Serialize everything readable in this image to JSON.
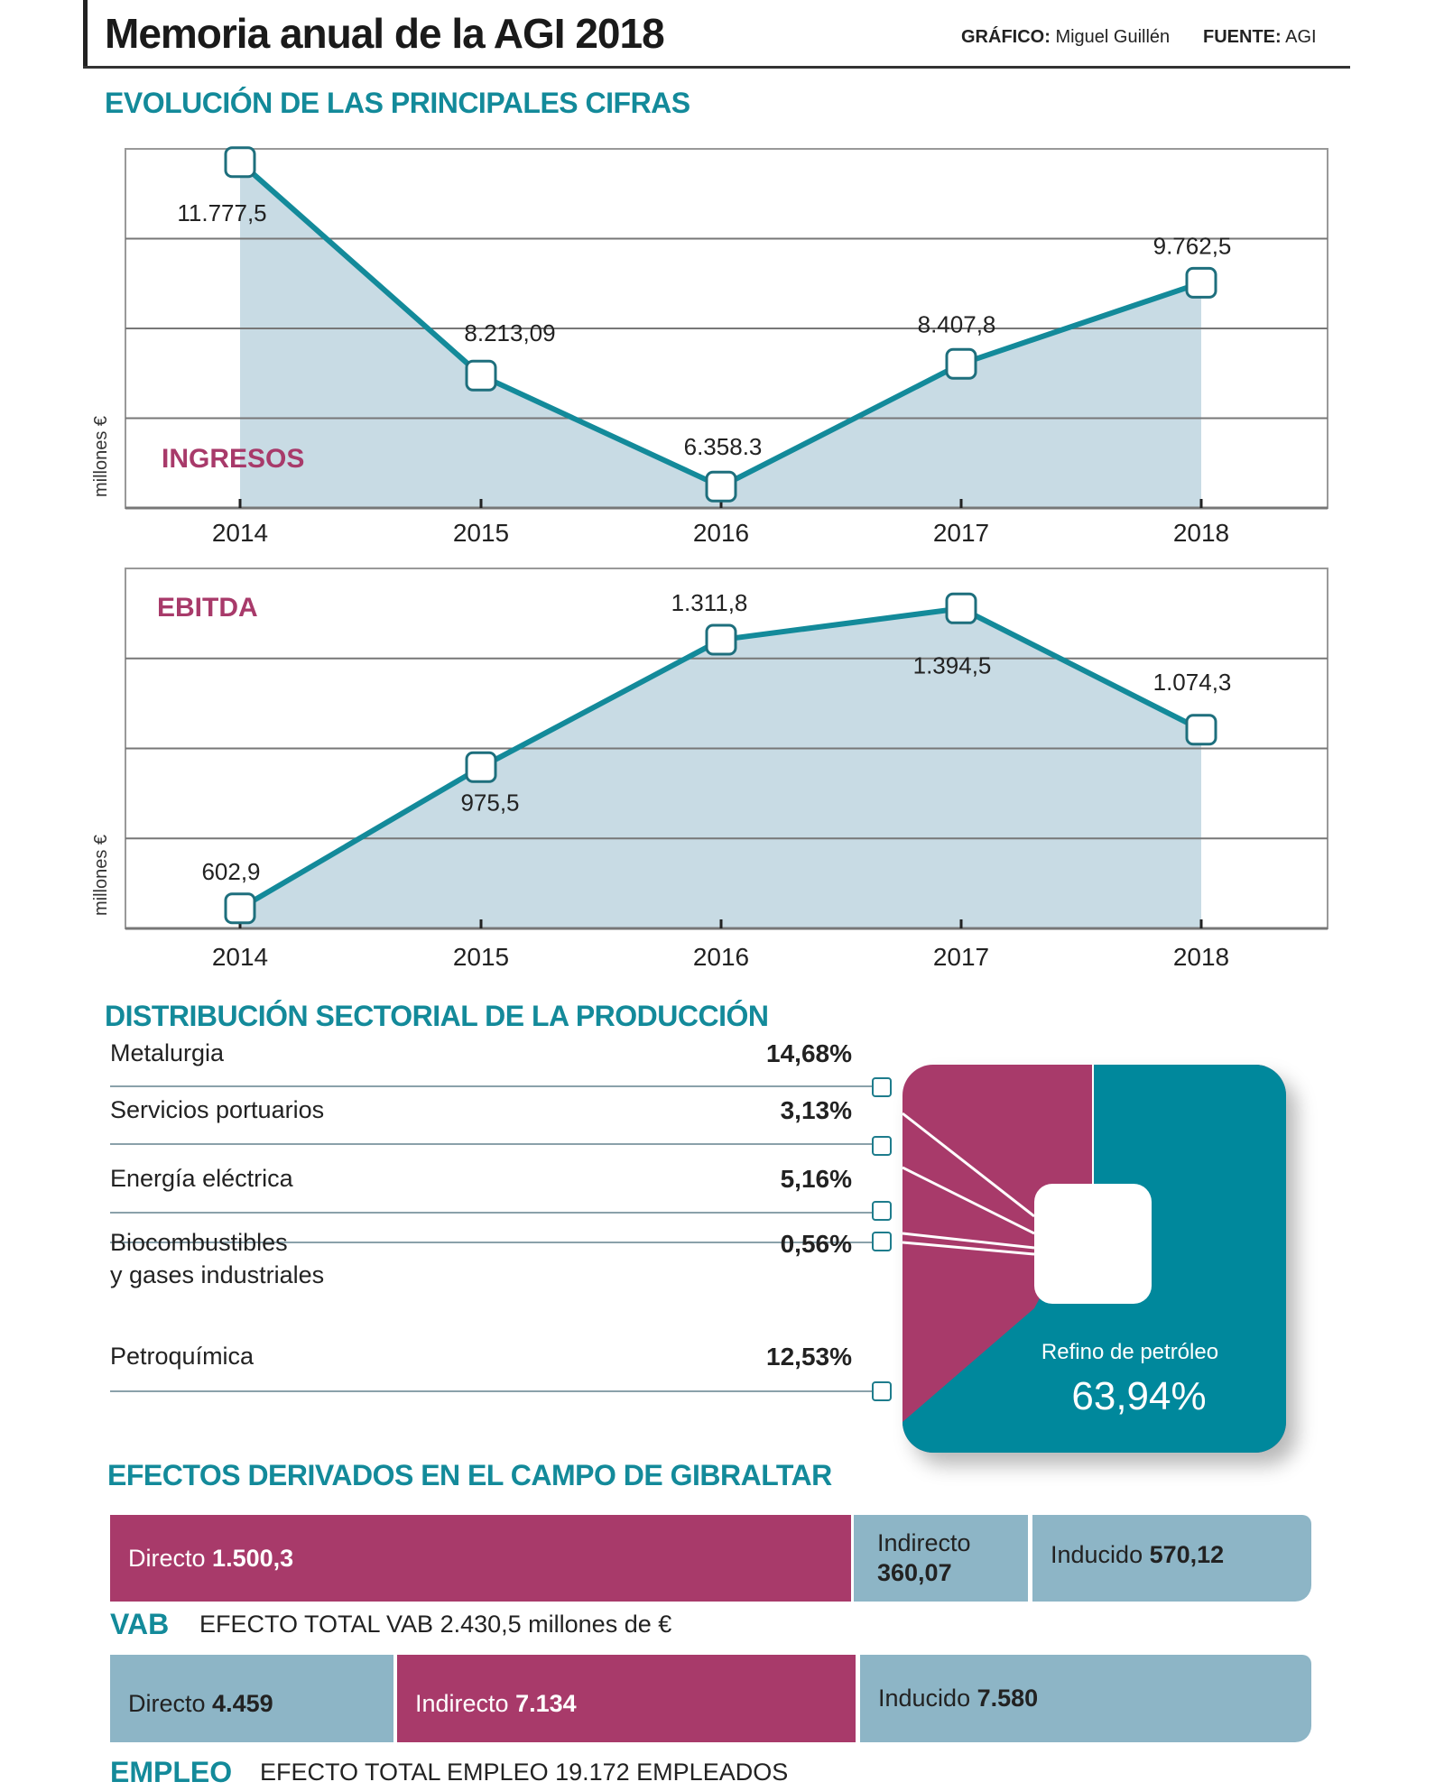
{
  "header": {
    "title": "Memoria anual de la AGI 2018",
    "grafico_label": "GRÁFICO:",
    "grafico_value": "Miguel Guillén",
    "fuente_label": "FUENTE:",
    "fuente_value": "AGI"
  },
  "section1_title": "EVOLUCIÓN DE LAS PRINCIPALES CIFRAS",
  "chart_data": [
    {
      "type": "area",
      "title": "INGRESOS",
      "ylabel": "millones €",
      "categories": [
        "2014",
        "2015",
        "2016",
        "2017",
        "2018"
      ],
      "values": [
        11777.5,
        8213.09,
        6358.3,
        8407.8,
        9762.5
      ],
      "labels": [
        "11.777,5",
        "8.213,09",
        "6.358.3",
        "8.407,8",
        "9.762,5"
      ],
      "ylim": [
        6000,
        12000
      ],
      "grid": true,
      "colors": {
        "line": "#138a9a",
        "fill": "#c8dbe4",
        "title": "#a83a6a"
      }
    },
    {
      "type": "area",
      "title": "EBITDA",
      "ylabel": "millones €",
      "categories": [
        "2014",
        "2015",
        "2016",
        "2017",
        "2018"
      ],
      "values": [
        602.9,
        975.5,
        1311.8,
        1394.5,
        1074.3
      ],
      "labels": [
        "602,9",
        "975,5",
        "1.311,8",
        "1.394,5",
        "1.074,3"
      ],
      "ylim": [
        550,
        1500
      ],
      "grid": true,
      "colors": {
        "line": "#138a9a",
        "fill": "#c8dbe4",
        "title": "#a83a6a"
      }
    },
    {
      "type": "pie",
      "title": "DISTRIBUCIÓN SECTORIAL DE LA PRODUCCIÓN",
      "slices": [
        {
          "label": "Metalurgia",
          "value": 14.68,
          "text": "14,68%"
        },
        {
          "label": "Servicios portuarios",
          "value": 3.13,
          "text": "3,13%"
        },
        {
          "label": "Energía eléctrica",
          "value": 5.16,
          "text": "5,16%"
        },
        {
          "label": "Biocombustibles",
          "label2": "y gases industriales",
          "value": 0.56,
          "text": "0,56%"
        },
        {
          "label": "Petroquímica",
          "value": 12.53,
          "text": "12,53%"
        },
        {
          "label": "Refino de petróleo",
          "value": 63.94,
          "text": "63,94%"
        }
      ],
      "colors": {
        "refino": "#00889c",
        "others": "#a83a6a"
      }
    }
  ],
  "section3_title": "EFECTOS DERIVADOS EN EL CAMPO DE GIBRALTAR",
  "vab": {
    "key": "VAB",
    "total": "EFECTO TOTAL VAB 2.430,5 millones de €",
    "directo_label": "Directo",
    "directo_value": "1.500,3",
    "indirecto_label": "Indirecto",
    "indirecto_value": "360,07",
    "inducido_label": "Inducido",
    "inducido_value": "570,12"
  },
  "empleo": {
    "key": "EMPLEO",
    "total": "EFECTO TOTAL EMPLEO 19.172 EMPLEADOS",
    "directo_label": "Directo",
    "directo_value": "4.459",
    "indirecto_label": "Indirecto",
    "indirecto_value": "7.134",
    "inducido_label": "Inducido",
    "inducido_value": "7.580"
  },
  "colors": {
    "teal": "#138a9a",
    "magenta": "#a83a6a",
    "light_blue": "#8db5c6"
  }
}
